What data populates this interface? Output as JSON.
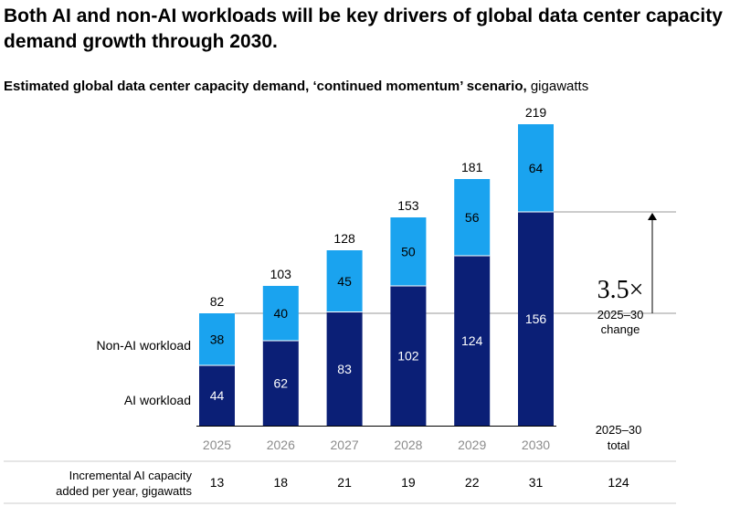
{
  "title": "Both AI and non-AI workloads will be key drivers of global data center capacity demand growth through 2030.",
  "subtitle_bold": "Estimated global data center capacity demand, ‘continued momentum’ scenario,",
  "subtitle_unit": "gigawatts",
  "colors": {
    "ai": "#0b1f76",
    "non_ai": "#1aa3ef",
    "text_gray": "#8c8c8c",
    "rule": "#cccccc"
  },
  "chart_data": {
    "type": "bar",
    "stacked": true,
    "categories": [
      "2025",
      "2026",
      "2027",
      "2028",
      "2029",
      "2030"
    ],
    "series": [
      {
        "name": "AI workload",
        "values": [
          44,
          62,
          83,
          102,
          124,
          156
        ]
      },
      {
        "name": "Non-AI workload",
        "values": [
          38,
          40,
          45,
          50,
          56,
          64
        ]
      }
    ],
    "totals": [
      82,
      103,
      128,
      153,
      181,
      219
    ],
    "annotation": {
      "value": "3.5×",
      "label": "2025–30 change"
    },
    "incremental": {
      "label_line1": "Incremental AI capacity",
      "label_line2": "added per year, gigawatts",
      "values": [
        13,
        18,
        21,
        19,
        22,
        31
      ],
      "total_header": "2025–30 total",
      "total_value": 124
    }
  }
}
